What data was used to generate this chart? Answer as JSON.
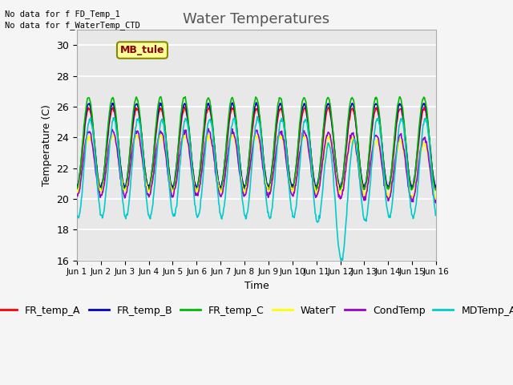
{
  "title": "Water Temperatures",
  "xlabel": "Time",
  "ylabel": "Temperature (C)",
  "ylim": [
    16,
    31
  ],
  "yticks": [
    16,
    18,
    20,
    22,
    24,
    26,
    28,
    30
  ],
  "xtick_labels": [
    "Jun 1",
    "Jun 2",
    "Jun 3",
    "Jun 4",
    "Jun 5",
    "Jun 6",
    "Jun 7",
    "Jun 8",
    "Jun 9",
    "Jun 10",
    "Jun 11",
    "Jun 12",
    "Jun 13",
    "Jun 14",
    "Jun 15",
    "Jun 16"
  ],
  "annotations": [
    "No data for f FD_Temp_1",
    "No data for f_WaterTemp_CTD"
  ],
  "mb_tule_label": "MB_tule",
  "series_names": [
    "FR_temp_A",
    "FR_temp_B",
    "FR_temp_C",
    "WaterT",
    "CondTemp",
    "MDTemp_A"
  ],
  "series_colors": [
    "#ff0000",
    "#0000cc",
    "#00bb00",
    "#ffff00",
    "#9900cc",
    "#00cccc"
  ],
  "title_fontsize": 13,
  "axis_fontsize": 9,
  "legend_fontsize": 9,
  "linewidth": 1.2
}
